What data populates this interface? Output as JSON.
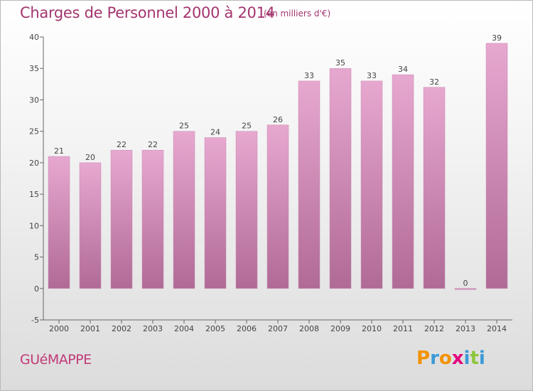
{
  "header": {
    "title": "Charges de Personnel 2000 à 2014",
    "subtitle": "(en milliers d'€)"
  },
  "footer": {
    "commune": "GUéMAPPE",
    "logo_letters": [
      "P",
      "r",
      "o",
      "x",
      "i",
      "t",
      "i"
    ]
  },
  "colors": {
    "title": "#a3356e",
    "bar_top": "#e7a8d0",
    "bar_bottom": "#b06a96",
    "axis": "#666666",
    "logo": [
      "#f39200",
      "#3c9ad6",
      "#f39200",
      "#e4007c",
      "#3c9ad6",
      "#8cc63f",
      "#3c9ad6"
    ]
  },
  "chart_data": {
    "type": "bar",
    "title": "Charges de Personnel 2000 à 2014",
    "subtitle": "(en milliers d'€)",
    "categories": [
      "2000",
      "2001",
      "2002",
      "2003",
      "2004",
      "2005",
      "2006",
      "2007",
      "2008",
      "2009",
      "2010",
      "2011",
      "2012",
      "2013",
      "2014"
    ],
    "values": [
      21,
      20,
      22,
      22,
      25,
      24,
      25,
      26,
      33,
      35,
      33,
      34,
      32,
      0,
      39
    ],
    "ylim": [
      -5,
      40
    ],
    "yticks": [
      -5,
      0,
      5,
      10,
      15,
      20,
      25,
      30,
      35,
      40
    ],
    "grid": false,
    "legend": "none"
  }
}
